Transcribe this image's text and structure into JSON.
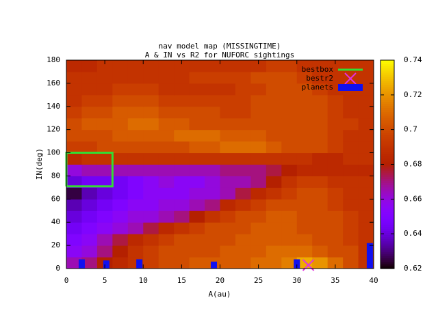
{
  "chart_data": {
    "type": "heatmap",
    "title": "nav model map (MISSINGTIME)",
    "subtitle": "A & IN vs R2 for NUFORC sightings",
    "x_label": "A(au)",
    "y_label": "IN(deg)",
    "xlim": [
      0,
      40
    ],
    "ylim": [
      0,
      180
    ],
    "xticks": [
      0,
      5,
      10,
      15,
      20,
      25,
      30,
      35,
      40
    ],
    "yticks": [
      0,
      20,
      40,
      60,
      80,
      100,
      120,
      140,
      160,
      180
    ],
    "zlim": [
      0.62,
      0.74
    ],
    "zticks": [
      0.62,
      0.64,
      0.66,
      0.68,
      0.7,
      0.72,
      0.74
    ],
    "x_bins": [
      0,
      2,
      4,
      6,
      8,
      10,
      12,
      14,
      16,
      18,
      20,
      22,
      24,
      26,
      28,
      30,
      32,
      34,
      36,
      38,
      40
    ],
    "y_bins": [
      0,
      10,
      20,
      30,
      40,
      50,
      60,
      70,
      80,
      90,
      100,
      110,
      120,
      130,
      140,
      150,
      160,
      170,
      180
    ],
    "z": [
      [
        0.665,
        0.67,
        0.68,
        0.685,
        0.69,
        0.695,
        0.7,
        0.7,
        0.705,
        0.705,
        0.705,
        0.705,
        0.71,
        0.71,
        0.715,
        0.725,
        0.72,
        0.71,
        0.7,
        0.69
      ],
      [
        0.655,
        0.66,
        0.67,
        0.68,
        0.69,
        0.695,
        0.7,
        0.7,
        0.7,
        0.7,
        0.705,
        0.705,
        0.705,
        0.71,
        0.71,
        0.71,
        0.705,
        0.7,
        0.7,
        0.69
      ],
      [
        0.65,
        0.655,
        0.665,
        0.675,
        0.685,
        0.69,
        0.695,
        0.7,
        0.7,
        0.7,
        0.7,
        0.705,
        0.705,
        0.705,
        0.705,
        0.705,
        0.7,
        0.7,
        0.695,
        0.69
      ],
      [
        0.645,
        0.65,
        0.655,
        0.66,
        0.665,
        0.675,
        0.685,
        0.69,
        0.695,
        0.7,
        0.7,
        0.7,
        0.705,
        0.705,
        0.705,
        0.7,
        0.7,
        0.7,
        0.695,
        0.69
      ],
      [
        0.64,
        0.645,
        0.65,
        0.655,
        0.66,
        0.66,
        0.665,
        0.67,
        0.68,
        0.69,
        0.695,
        0.7,
        0.7,
        0.705,
        0.705,
        0.7,
        0.7,
        0.7,
        0.695,
        0.69
      ],
      [
        0.635,
        0.64,
        0.645,
        0.65,
        0.655,
        0.655,
        0.66,
        0.66,
        0.665,
        0.67,
        0.685,
        0.69,
        0.695,
        0.7,
        0.7,
        0.7,
        0.7,
        0.695,
        0.69,
        0.69
      ],
      [
        0.625,
        0.635,
        0.64,
        0.645,
        0.65,
        0.655,
        0.655,
        0.655,
        0.66,
        0.66,
        0.665,
        0.675,
        0.685,
        0.69,
        0.695,
        0.7,
        0.7,
        0.695,
        0.69,
        0.69
      ],
      [
        0.64,
        0.645,
        0.645,
        0.645,
        0.65,
        0.655,
        0.66,
        0.655,
        0.655,
        0.66,
        0.665,
        0.665,
        0.67,
        0.68,
        0.69,
        0.695,
        0.695,
        0.69,
        0.69,
        0.69
      ],
      [
        0.66,
        0.665,
        0.665,
        0.665,
        0.665,
        0.665,
        0.665,
        0.665,
        0.665,
        0.665,
        0.67,
        0.67,
        0.67,
        0.675,
        0.68,
        0.685,
        0.685,
        0.685,
        0.685,
        0.685
      ],
      [
        0.685,
        0.69,
        0.69,
        0.69,
        0.69,
        0.69,
        0.69,
        0.69,
        0.69,
        0.69,
        0.69,
        0.69,
        0.69,
        0.69,
        0.69,
        0.69,
        0.685,
        0.685,
        0.69,
        0.69
      ],
      [
        0.695,
        0.695,
        0.7,
        0.7,
        0.7,
        0.7,
        0.7,
        0.7,
        0.705,
        0.705,
        0.71,
        0.71,
        0.71,
        0.705,
        0.7,
        0.7,
        0.7,
        0.695,
        0.69,
        0.69
      ],
      [
        0.7,
        0.7,
        0.7,
        0.705,
        0.705,
        0.705,
        0.705,
        0.71,
        0.71,
        0.71,
        0.705,
        0.705,
        0.705,
        0.7,
        0.7,
        0.7,
        0.7,
        0.695,
        0.69,
        0.69
      ],
      [
        0.7,
        0.705,
        0.705,
        0.705,
        0.71,
        0.71,
        0.705,
        0.705,
        0.7,
        0.7,
        0.7,
        0.7,
        0.7,
        0.7,
        0.7,
        0.7,
        0.7,
        0.695,
        0.695,
        0.69
      ],
      [
        0.695,
        0.7,
        0.7,
        0.705,
        0.705,
        0.705,
        0.7,
        0.7,
        0.7,
        0.7,
        0.695,
        0.695,
        0.7,
        0.7,
        0.7,
        0.7,
        0.7,
        0.695,
        0.69,
        0.69
      ],
      [
        0.69,
        0.695,
        0.695,
        0.7,
        0.7,
        0.7,
        0.695,
        0.695,
        0.695,
        0.695,
        0.695,
        0.695,
        0.7,
        0.7,
        0.7,
        0.7,
        0.7,
        0.695,
        0.69,
        0.69
      ],
      [
        0.69,
        0.69,
        0.69,
        0.695,
        0.695,
        0.695,
        0.69,
        0.69,
        0.69,
        0.69,
        0.69,
        0.695,
        0.695,
        0.7,
        0.7,
        0.7,
        0.695,
        0.69,
        0.69,
        0.69
      ],
      [
        0.69,
        0.69,
        0.69,
        0.69,
        0.69,
        0.69,
        0.69,
        0.69,
        0.695,
        0.695,
        0.695,
        0.695,
        0.7,
        0.7,
        0.7,
        0.695,
        0.69,
        0.69,
        0.69,
        0.69
      ],
      [
        0.685,
        0.685,
        0.69,
        0.69,
        0.69,
        0.69,
        0.69,
        0.69,
        0.69,
        0.69,
        0.69,
        0.69,
        0.69,
        0.695,
        0.695,
        0.69,
        0.69,
        0.69,
        0.69,
        0.69
      ]
    ],
    "series": [
      {
        "name": "bestbox",
        "color": "#33dd33",
        "x": [
          0,
          6,
          6,
          0,
          0
        ],
        "values": [
          71,
          71,
          100,
          100,
          71
        ]
      },
      {
        "name": "bestr2",
        "color": "#e033e0",
        "x": [
          31.5
        ],
        "values": [
          3
        ]
      },
      {
        "name": "planets",
        "color": "#1010f0",
        "x": [
          2,
          5.2,
          9.5,
          19.2,
          30,
          39.5
        ],
        "values": [
          8,
          7,
          8,
          6,
          8,
          22
        ]
      }
    ]
  }
}
